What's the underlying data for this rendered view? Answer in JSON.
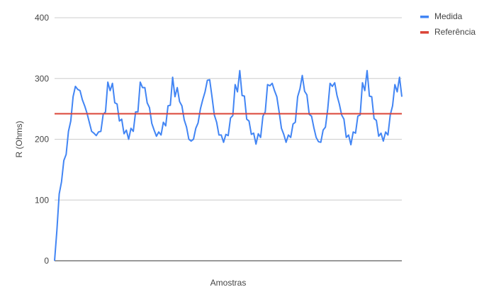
{
  "chart_data": {
    "type": "line",
    "title": "",
    "xlabel": "Amostras",
    "ylabel": "R (Ohms)",
    "ylim": [
      0,
      400
    ],
    "yticks": [
      0,
      100,
      200,
      300,
      400
    ],
    "grid": true,
    "legend_position": "top-right",
    "series": [
      {
        "name": "Medida",
        "color": "#4285f4",
        "values": [
          0,
          50,
          110,
          130,
          165,
          175,
          213,
          230,
          270,
          287,
          282,
          280,
          265,
          255,
          243,
          228,
          213,
          210,
          206,
          212,
          213,
          241,
          245,
          294,
          280,
          292,
          260,
          258,
          230,
          233,
          209,
          215,
          200,
          218,
          213,
          245,
          245,
          294,
          285,
          285,
          260,
          252,
          226,
          215,
          205,
          212,
          207,
          228,
          222,
          255,
          256,
          302,
          270,
          285,
          262,
          255,
          232,
          220,
          200,
          197,
          200,
          218,
          227,
          250,
          265,
          278,
          297,
          298,
          270,
          240,
          228,
          207,
          207,
          195,
          208,
          206,
          235,
          239,
          290,
          278,
          313,
          272,
          271,
          233,
          230,
          208,
          210,
          192,
          209,
          203,
          238,
          245,
          290,
          288,
          292,
          280,
          270,
          245,
          218,
          208,
          195,
          207,
          203,
          225,
          228,
          270,
          283,
          305,
          279,
          273,
          241,
          238,
          219,
          203,
          196,
          195,
          215,
          220,
          250,
          292,
          287,
          293,
          272,
          258,
          240,
          233,
          203,
          207,
          191,
          212,
          210,
          238,
          240,
          293,
          280,
          313,
          271,
          270,
          234,
          231,
          205,
          210,
          197,
          212,
          207,
          240,
          255,
          290,
          278,
          302,
          270
        ]
      },
      {
        "name": "Referência",
        "color": "#db4437",
        "values": [
          242,
          242
        ]
      }
    ]
  }
}
